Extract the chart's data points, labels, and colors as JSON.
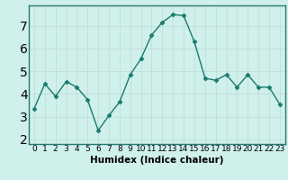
{
  "x": [
    0,
    1,
    2,
    3,
    4,
    5,
    6,
    7,
    8,
    9,
    10,
    11,
    12,
    13,
    14,
    15,
    16,
    17,
    18,
    19,
    20,
    21,
    22,
    23
  ],
  "y": [
    3.35,
    4.45,
    3.9,
    4.55,
    4.3,
    3.75,
    2.4,
    3.05,
    3.65,
    4.85,
    5.55,
    6.6,
    7.15,
    7.5,
    7.45,
    6.3,
    4.7,
    4.6,
    4.85,
    4.3,
    4.85,
    4.3,
    4.3,
    3.55
  ],
  "line_color": "#1a7a6e",
  "marker": "D",
  "markersize": 2.5,
  "linewidth": 1.0,
  "xlabel": "Humidex (Indice chaleur)",
  "xlim": [
    -0.5,
    23.5
  ],
  "ylim": [
    1.8,
    7.9
  ],
  "yticks": [
    2,
    3,
    4,
    5,
    6,
    7
  ],
  "xticks": [
    0,
    1,
    2,
    3,
    4,
    5,
    6,
    7,
    8,
    9,
    10,
    11,
    12,
    13,
    14,
    15,
    16,
    17,
    18,
    19,
    20,
    21,
    22,
    23
  ],
  "bg_color": "#cff0eb",
  "grid_color": "#c0deda",
  "tick_fontsize": 6.5,
  "xlabel_fontsize": 7.5,
  "linestyle": "-"
}
